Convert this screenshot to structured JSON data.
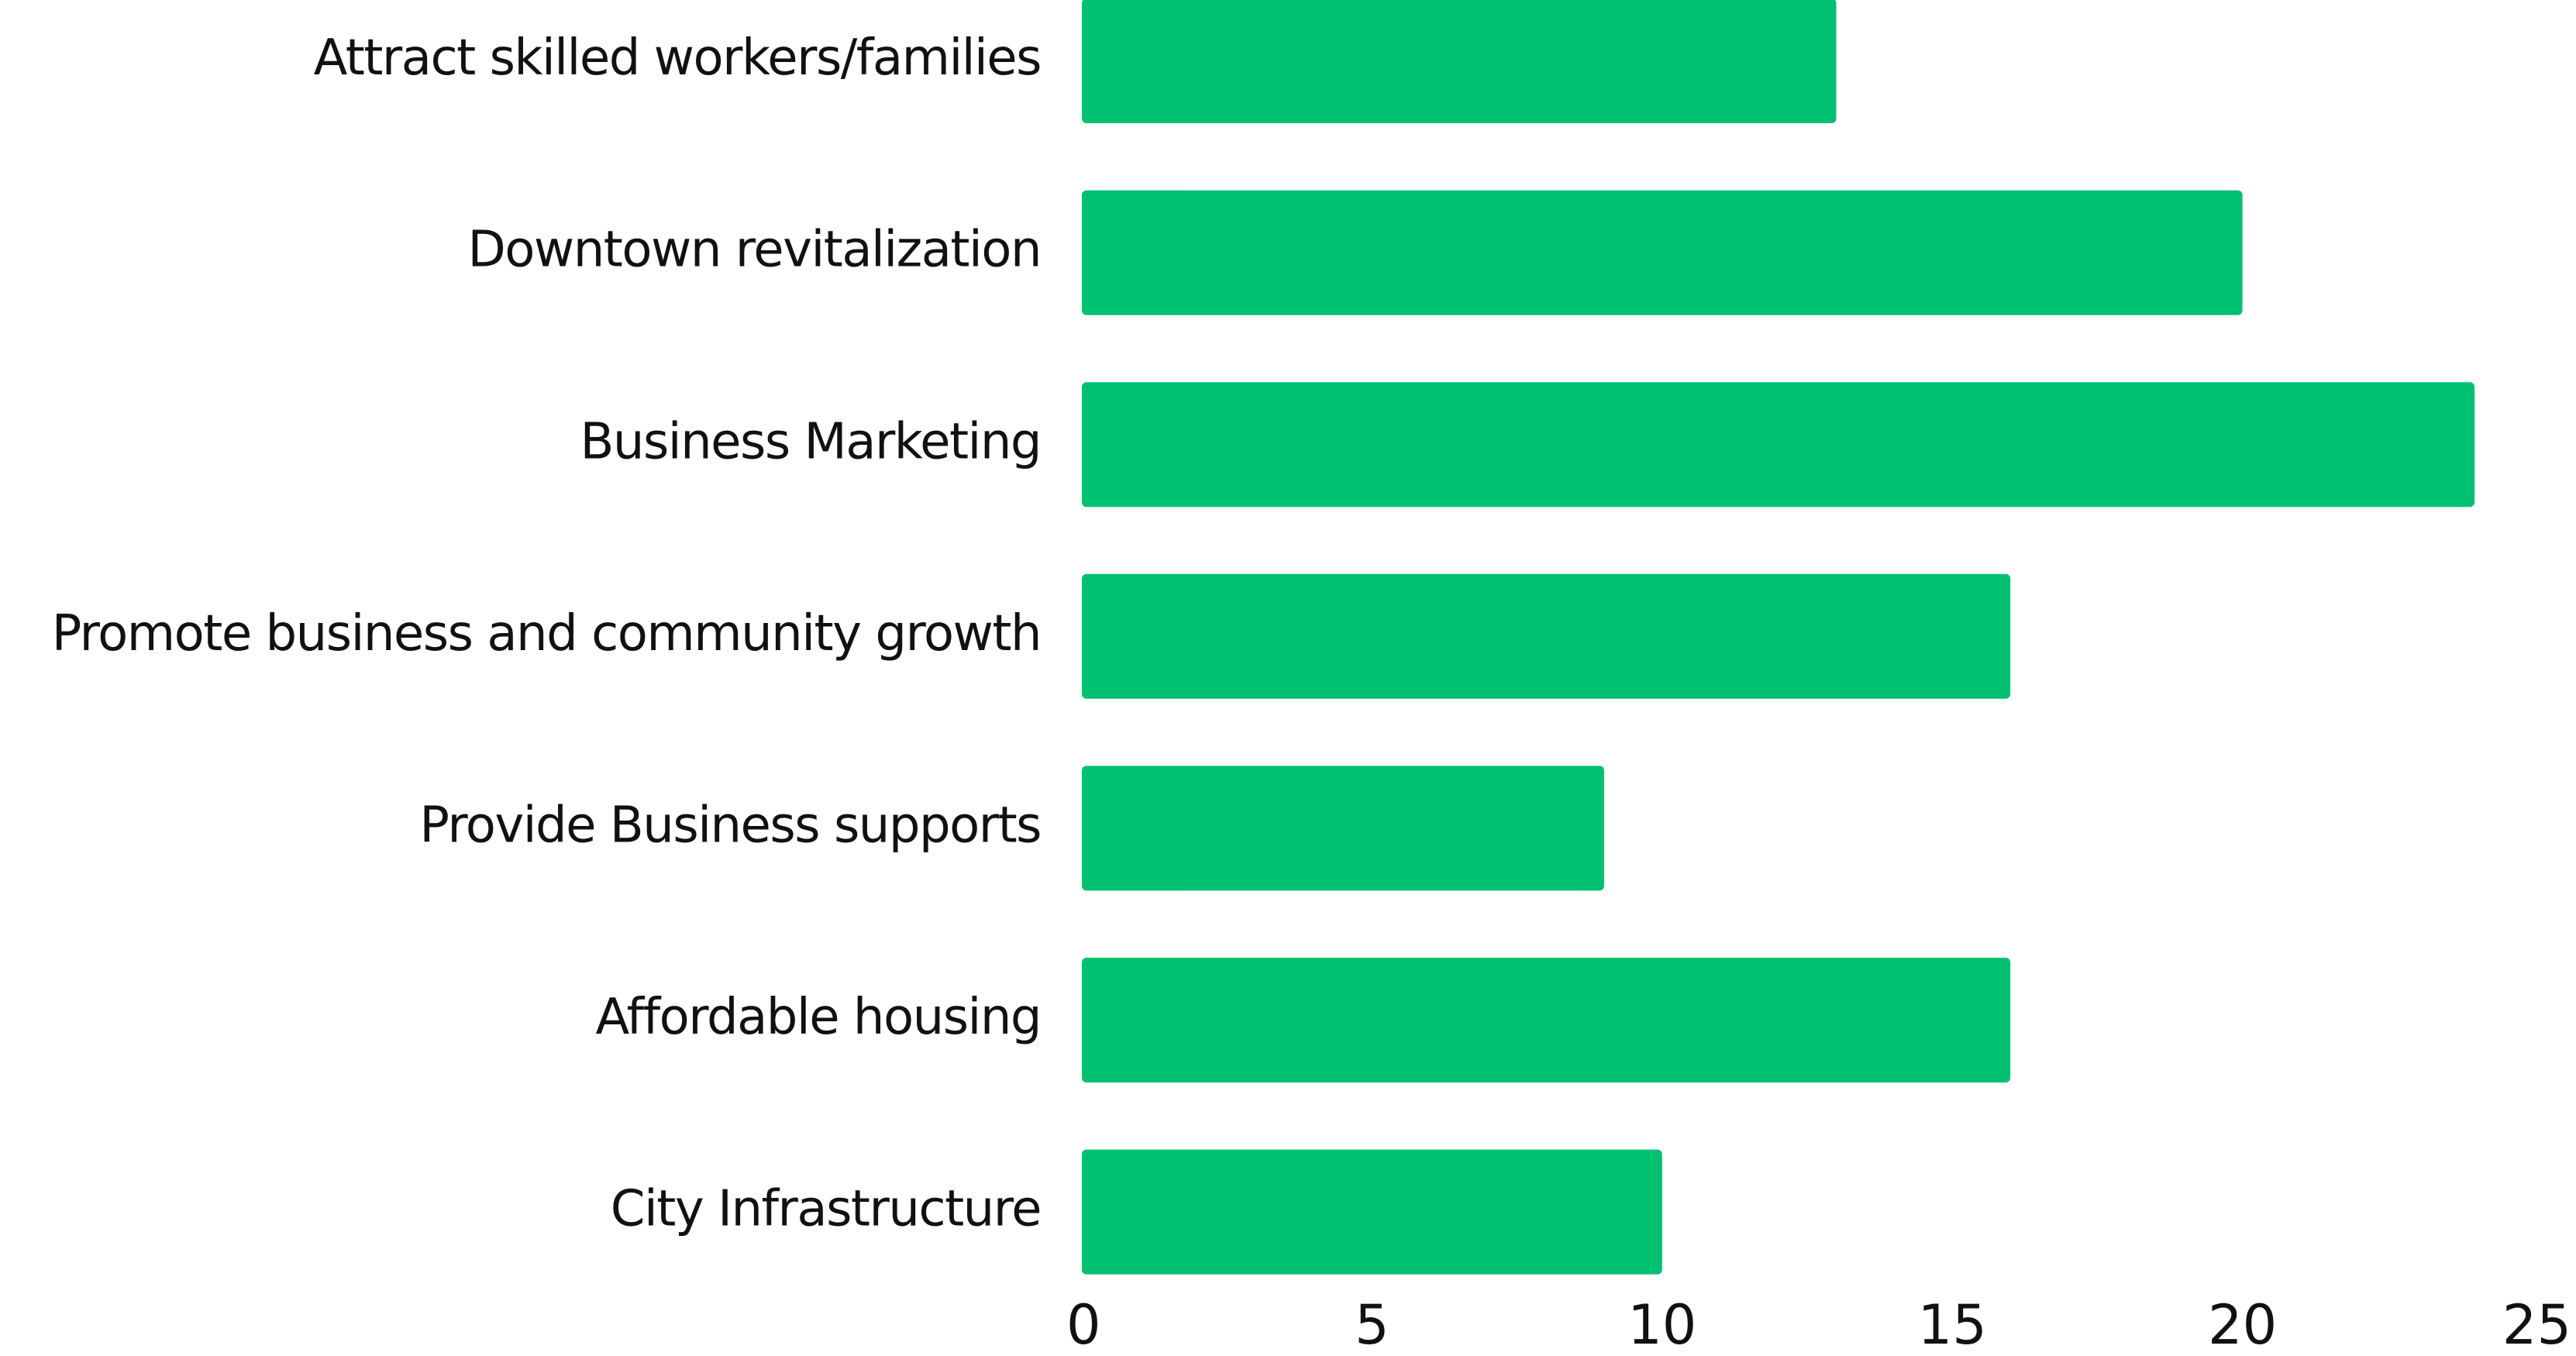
{
  "chart_data": {
    "type": "bar",
    "orientation": "horizontal",
    "categories": [
      "Attract skilled workers/families",
      "Downtown revitalization",
      "Business Marketing",
      "Promote business and community growth",
      "Provide Business supports",
      "Affordable housing",
      "City Infrastructure"
    ],
    "values": [
      13,
      20,
      24,
      16,
      9,
      16,
      10
    ],
    "color": "#00c170",
    "xlim": [
      0,
      25
    ],
    "xticks": [
      0,
      5,
      10,
      15,
      20,
      25
    ],
    "grid": false
  }
}
